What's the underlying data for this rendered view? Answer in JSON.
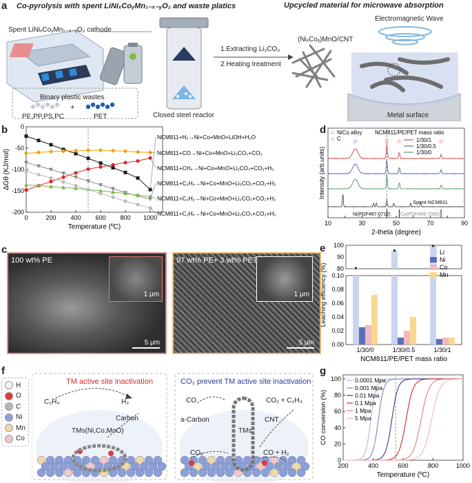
{
  "panels": {
    "a": {
      "label": "a",
      "title_left": "Co-pyrolysis with spent LiNiₓCoᵧMn₁₋ₓ₋ᵧO₂ and waste platics",
      "title_right": "Upcycled material for microwave absorption",
      "cathode_label": "Spent LiNiₓCoᵧMn₁₋ₓ₋ᵧO₂ cathode",
      "plastics_title": "Binary plastic wastes",
      "plastic_1": "PE,PP,PS,PC",
      "plus": "+",
      "plastic_2": "PET",
      "reactor_label": "Closed steel reactor",
      "step_1": "1.Extracting Li₂CO₃",
      "step_2": "2.Heating treatment",
      "product_label": "(NiₓCoᵧ)MnO/CNT",
      "wave_label": "Electromagnetic Wave",
      "surface_label": "Metal surface"
    },
    "b": {
      "label": "b"
    },
    "c": {
      "label": "c",
      "img1_label": "100 wt% PE",
      "img1_inset_scale": "1 μm",
      "img1_scale": "5 μm",
      "img2_label": "97 wt% PE+ 3 wt% PET",
      "img2_inset_scale": "1 μm",
      "img2_scale": "5 μm"
    },
    "d": {
      "label": "d"
    },
    "e": {
      "label": "e"
    },
    "f": {
      "label": "f",
      "legend": [
        "H",
        "O",
        "C",
        "Ni",
        "Mn",
        "Co"
      ],
      "legend_colors": [
        "#f4f4f6",
        "#e0383d",
        "#b8b8b8",
        "#8c9fd6",
        "#f1d9a6",
        "#f2c7c4"
      ],
      "left_title": "TM active site inactivation",
      "left_c2h4": "C₂H₄",
      "left_h2": "H₂",
      "left_carbon": "Carbon",
      "left_tms": "TMs(Ni,Co,MnO)",
      "right_title": "CO₂ prevent TM active site inactivation",
      "right_co": "CO",
      "right_co2_c2h4": "CO₂ + C₂H₄",
      "right_acarbon": "a-Carbon",
      "right_cnt": "CNT",
      "right_tms": "TMs",
      "right_co2": "CO₂",
      "right_co_h2": "CO + H₂"
    },
    "g": {
      "label": "g"
    }
  },
  "chart_data": [
    {
      "id": "b",
      "type": "line",
      "xlabel": "Temperature (ºC)",
      "ylabel": "ΔGθ (KJ/mol)",
      "xlim": [
        0,
        1100
      ],
      "ylim": [
        -200,
        0
      ],
      "xticks": [
        0,
        200,
        400,
        600,
        800,
        1000
      ],
      "yticks": [
        0,
        -50,
        -100,
        -150,
        -200
      ],
      "grid": false,
      "dashed_vline": 500,
      "x": [
        0,
        100,
        200,
        300,
        400,
        500,
        600,
        700,
        800,
        900,
        1000
      ],
      "series": [
        {
          "name": "NCM811+H₂→Ni+Co+MnO+LiOH+H₂O",
          "color": "#1a1a1a",
          "marker": "square",
          "values": [
            -22,
            -32,
            -42,
            -53,
            -63,
            -74,
            -85,
            -96,
            -107,
            -120,
            -147
          ]
        },
        {
          "name": "NCM811+CO→Ni+Co+MnO+Li₂CO₃+CO₂",
          "color": "#f0a000",
          "marker": "diamond",
          "values": [
            -62,
            -60,
            -58,
            -57,
            -56,
            -55,
            -55,
            -56,
            -57,
            -59,
            -60
          ]
        },
        {
          "name": "NCM811+CH₄→Ni+Co+MnO+Li₂CO₃+CO₂+H₂",
          "color": "#d62728",
          "marker": "circle",
          "values": [
            -148,
            -138,
            -128,
            -118,
            -108,
            -99,
            -94,
            -89,
            -84,
            -80,
            -73
          ]
        },
        {
          "name": "NCM811+C₂H₄→Ni+Co+MnO+Li₂CO₃+CO₂+H₂",
          "color": "#888888",
          "marker": "triangle-down",
          "values": [
            -84,
            -92,
            -100,
            -109,
            -118,
            -127,
            -136,
            -145,
            -154,
            -162,
            -169
          ]
        },
        {
          "name": "NCM811+C₂H₂→Ni+Co+MnO+Li₂CO₃+CO₂+H₂",
          "color": "#7ab648",
          "marker": "triangle-up",
          "values": [
            -136,
            -138,
            -140,
            -142,
            -144,
            -147,
            -150,
            -153,
            -156,
            -160,
            -163
          ]
        },
        {
          "name": "NCM811+C₂H₆→Ni+Co+MnO+Li₂CO₃+CO₂+H₂",
          "color": "#bbbbbb",
          "marker": "circle",
          "values": [
            -104,
            -112,
            -120,
            -129,
            -138,
            -147,
            -156,
            -165,
            -174,
            -182,
            -190
          ]
        }
      ]
    },
    {
      "id": "d",
      "type": "line",
      "xlabel": "2-theta (degree)",
      "ylabel": "Intensity (arb.units)",
      "xlim": [
        10,
        90
      ],
      "xticks": [
        10,
        20,
        30,
        40,
        50,
        60,
        70,
        80,
        90
      ],
      "legend_title": "NCM811/PE/PET mass ratio",
      "marker_legend": [
        {
          "symbol": "☆",
          "label": "NiCo alloy",
          "color": "#d62728"
        },
        {
          "symbol": "☆",
          "label": "C",
          "color": "#3a4fa0"
        }
      ],
      "series": [
        {
          "name": "1/30/1",
          "color": "#d62728"
        },
        {
          "name": "1/30/0.5",
          "color": "#3a4fa0"
        },
        {
          "name": "1/30/0",
          "color": "#2e8b57"
        },
        {
          "name": "Spent NCM811",
          "color": "#333333"
        }
      ],
      "alloy_peaks": [
        44.5,
        51.8,
        76.3
      ],
      "carbon_peak": 26,
      "ref_labels": [
        "Ni(PDF#87-0712)",
        "Co(PDF#89-7093)"
      ]
    },
    {
      "id": "e",
      "type": "bar",
      "xlabel": "NCM811/PE/PET mass ratio",
      "ylabel": "Leaching efficiency (%)",
      "categories": [
        "1/30/0",
        "1/30/0.5",
        "1/30/1"
      ],
      "series": [
        {
          "name": "Li",
          "color": "#c9d4ef",
          "values": [
            80.5,
            95.5,
            99.5
          ]
        },
        {
          "name": "Ni",
          "color": "#5b6fb8",
          "values": [
            0.025,
            0.01,
            0.008
          ]
        },
        {
          "name": "Co",
          "color": "#f3b8c0",
          "values": [
            0.028,
            0.02,
            0.01
          ]
        },
        {
          "name": "Mn",
          "color": "#fbd78e",
          "values": [
            0.072,
            0.04,
            0.01
          ]
        }
      ],
      "broken_axis": {
        "lower": [
          0,
          0.1
        ],
        "upper": [
          80,
          100
        ]
      },
      "yticks_lower": [
        0.0,
        0.02,
        0.04,
        0.06,
        0.08,
        0.1
      ],
      "yticks_upper": [
        80,
        90,
        100
      ]
    },
    {
      "id": "g",
      "type": "line",
      "xlabel": "Temperature (ºC)",
      "ylabel": "CO conversion (%)",
      "xlim": [
        200,
        1000
      ],
      "ylim": [
        0,
        105
      ],
      "xticks": [
        200,
        400,
        600,
        800,
        1000
      ],
      "yticks": [
        0,
        20,
        40,
        60,
        80,
        100
      ],
      "dashed_vline": 550,
      "series": [
        {
          "name": "0.0001 Mpa",
          "color": "#b0b7dd",
          "midpoint": 385,
          "width": 38
        },
        {
          "name": "0.001 Mpa",
          "color": "#7b86c4",
          "midpoint": 435,
          "width": 40
        },
        {
          "name": "0.01 Mpa",
          "color": "#2f3a94",
          "midpoint": 525,
          "width": 45
        },
        {
          "name": "0.1 Mpa",
          "color": "#d62728",
          "midpoint": 620,
          "width": 52
        },
        {
          "name": "1 Mpa",
          "color": "#e57c7c",
          "midpoint": 720,
          "width": 58
        },
        {
          "name": "5 Mpa",
          "color": "#f2b8b8",
          "midpoint": 790,
          "width": 62
        }
      ]
    }
  ]
}
